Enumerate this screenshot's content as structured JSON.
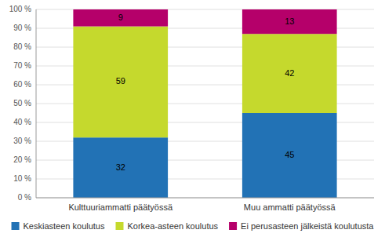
{
  "chart_data": {
    "type": "bar",
    "stacked": true,
    "categories": [
      "Kulttuuriammatti päätyössä",
      "Muu ammatti päätyössä"
    ],
    "series": [
      {
        "name": "Keskiasteen koulutus",
        "color": "#2272B5",
        "values": [
          32,
          45
        ]
      },
      {
        "name": "Korkea-asteen koulutus",
        "color": "#C5D92D",
        "values": [
          59,
          42
        ]
      },
      {
        "name": "Ei perusasteen jälkeistä koulutusta",
        "color": "#B5006A",
        "values": [
          9,
          13
        ]
      }
    ],
    "ylim": [
      0,
      100
    ],
    "yticks": [
      {
        "value": 0,
        "label": "0 %"
      },
      {
        "value": 10,
        "label": "10 %"
      },
      {
        "value": 20,
        "label": "20 %"
      },
      {
        "value": 30,
        "label": "30 %"
      },
      {
        "value": 40,
        "label": "40 %"
      },
      {
        "value": 50,
        "label": "50 %"
      },
      {
        "value": 60,
        "label": "60 %"
      },
      {
        "value": 70,
        "label": "70 %"
      },
      {
        "value": 80,
        "label": "80 %"
      },
      {
        "value": 90,
        "label": "90 %"
      },
      {
        "value": 100,
        "label": "100 %"
      }
    ],
    "grid": true,
    "data_labels": true,
    "legend": "bottom"
  }
}
